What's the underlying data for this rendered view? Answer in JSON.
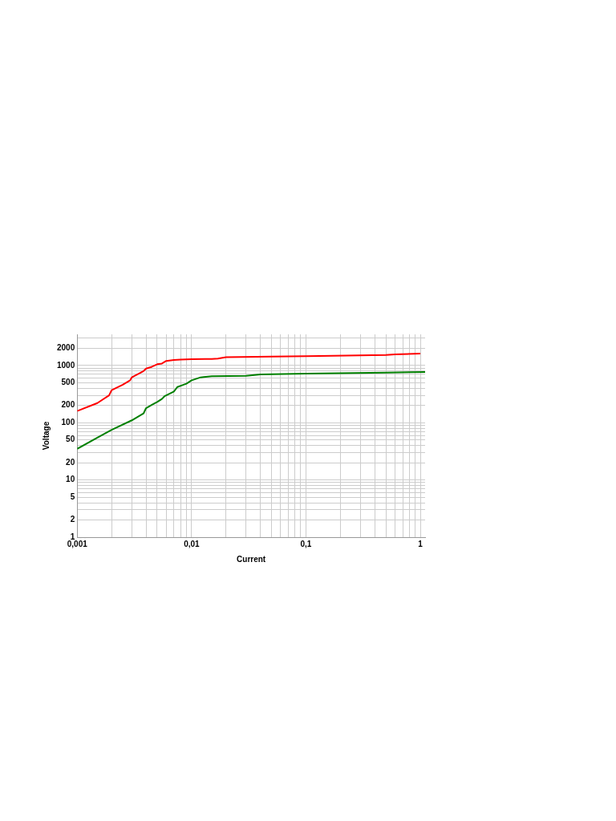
{
  "chart_data": {
    "type": "line",
    "xlabel": "Current",
    "ylabel": "Voltage",
    "log": "xy",
    "grid": true,
    "legend": false,
    "marker": "none",
    "line_style": "solid",
    "xlim": [
      0.001,
      1.1
    ],
    "ylim": [
      1,
      3500
    ],
    "xticks": [
      {
        "value": 0.001,
        "label": "0,001"
      },
      {
        "value": 0.002,
        "label": null
      },
      {
        "value": 0.003,
        "label": null
      },
      {
        "value": 0.004,
        "label": null
      },
      {
        "value": 0.005,
        "label": null
      },
      {
        "value": 0.006,
        "label": null
      },
      {
        "value": 0.007,
        "label": null
      },
      {
        "value": 0.008,
        "label": null
      },
      {
        "value": 0.009,
        "label": null
      },
      {
        "value": 0.01,
        "label": "0,01"
      },
      {
        "value": 0.02,
        "label": null
      },
      {
        "value": 0.03,
        "label": null
      },
      {
        "value": 0.04,
        "label": null
      },
      {
        "value": 0.05,
        "label": null
      },
      {
        "value": 0.06,
        "label": null
      },
      {
        "value": 0.07,
        "label": null
      },
      {
        "value": 0.08,
        "label": null
      },
      {
        "value": 0.09,
        "label": null
      },
      {
        "value": 0.1,
        "label": "0,1"
      },
      {
        "value": 0.2,
        "label": null
      },
      {
        "value": 0.3,
        "label": null
      },
      {
        "value": 0.4,
        "label": null
      },
      {
        "value": 0.5,
        "label": null
      },
      {
        "value": 0.6,
        "label": null
      },
      {
        "value": 0.7,
        "label": null
      },
      {
        "value": 0.8,
        "label": null
      },
      {
        "value": 0.9,
        "label": null
      },
      {
        "value": 1,
        "label": "1"
      }
    ],
    "yticks": [
      1,
      2,
      {
        "value": 3,
        "label": null
      },
      {
        "value": 4,
        "label": null
      },
      5,
      {
        "value": 6,
        "label": null
      },
      {
        "value": 7,
        "label": null
      },
      {
        "value": 8,
        "label": null
      },
      {
        "value": 9,
        "label": null
      },
      10,
      20,
      {
        "value": 30,
        "label": null
      },
      {
        "value": 40,
        "label": null
      },
      50,
      {
        "value": 60,
        "label": null
      },
      {
        "value": 70,
        "label": null
      },
      {
        "value": 80,
        "label": null
      },
      {
        "value": 90,
        "label": null
      },
      100,
      200,
      {
        "value": 300,
        "label": null
      },
      {
        "value": 400,
        "label": null
      },
      500,
      {
        "value": 600,
        "label": null
      },
      {
        "value": 700,
        "label": null
      },
      {
        "value": 800,
        "label": null
      },
      {
        "value": 900,
        "label": null
      },
      1000,
      2000,
      {
        "value": 3000,
        "label": null
      }
    ],
    "series": [
      {
        "color": "#ff0000",
        "x": [
          0.001,
          0.0015,
          0.0019,
          0.002,
          0.0025,
          0.0029,
          0.003,
          0.0035,
          0.0038,
          0.004,
          0.0045,
          0.005,
          0.0055,
          0.006,
          0.007,
          0.008,
          0.01,
          0.015,
          0.017,
          0.02,
          0.05,
          0.1,
          0.5,
          0.6,
          1
        ],
        "values": [
          160,
          220,
          300,
          370,
          460,
          550,
          620,
          730,
          800,
          880,
          950,
          1050,
          1080,
          1200,
          1250,
          1270,
          1290,
          1300,
          1320,
          1400,
          1430,
          1450,
          1530,
          1560,
          1620
        ]
      },
      {
        "color": "#008000",
        "x": [
          0.001,
          0.0015,
          0.002,
          0.003,
          0.0038,
          0.004,
          0.0045,
          0.005,
          0.0055,
          0.0058,
          0.006,
          0.007,
          0.0075,
          0.0085,
          0.009,
          0.01,
          0.012,
          0.015,
          0.03,
          0.04,
          0.1,
          0.5,
          1.1
        ],
        "values": [
          35,
          55,
          75,
          110,
          145,
          180,
          205,
          230,
          260,
          290,
          300,
          350,
          420,
          460,
          480,
          550,
          620,
          650,
          660,
          700,
          720,
          750,
          770
        ]
      }
    ]
  }
}
